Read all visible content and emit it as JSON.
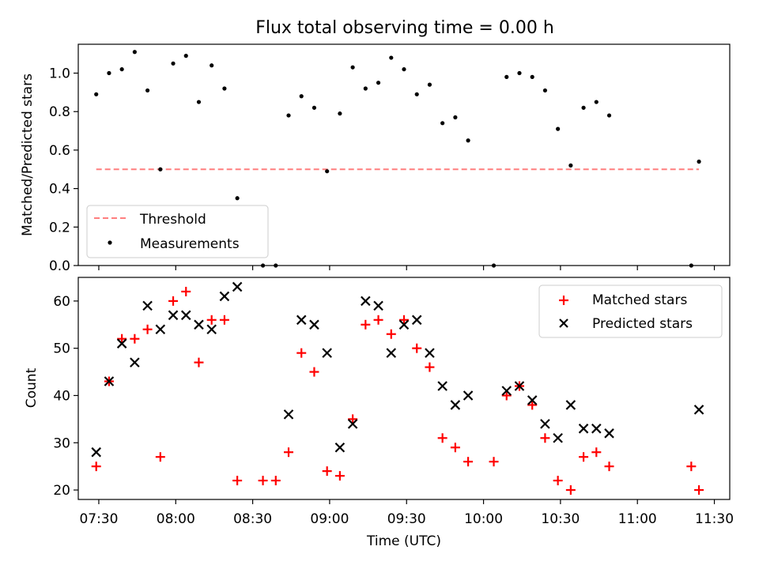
{
  "title": "Flux total observing time = 0.00 h",
  "xlabel": "Time (UTC)",
  "x_ticks": [
    "07:30",
    "08:00",
    "08:30",
    "09:00",
    "09:30",
    "10:00",
    "10:30",
    "11:00",
    "11:30"
  ],
  "x_tick_minutes": [
    450,
    480,
    510,
    540,
    570,
    600,
    630,
    660,
    690
  ],
  "chart_data": [
    {
      "type": "scatter",
      "ylabel": "Matched/Predicted stars",
      "xlim": [
        "07:22",
        "11:36"
      ],
      "ylim": [
        0,
        1.15
      ],
      "y_ticks": [
        "0.0",
        "0.2",
        "0.4",
        "0.6",
        "0.8",
        "1.0"
      ],
      "y_tick_values": [
        0,
        0.2,
        0.4,
        0.6,
        0.8,
        1.0
      ],
      "legend_position": "lower-left",
      "colors": {
        "threshold": "#ff7f7f",
        "measurements": "#000000"
      },
      "threshold": {
        "name": "Threshold",
        "value": 0.5,
        "x_range": [
          "07:29",
          "11:24"
        ]
      },
      "series": [
        {
          "name": "Measurements",
          "x": [
            "07:29",
            "07:34",
            "07:39",
            "07:44",
            "07:49",
            "07:54",
            "07:59",
            "08:04",
            "08:09",
            "08:14",
            "08:19",
            "08:24",
            "08:34",
            "08:39",
            "08:44",
            "08:49",
            "08:54",
            "08:59",
            "09:04",
            "09:09",
            "09:14",
            "09:19",
            "09:24",
            "09:29",
            "09:34",
            "09:39",
            "09:44",
            "09:49",
            "09:54",
            "10:04",
            "10:09",
            "10:14",
            "10:19",
            "10:24",
            "10:29",
            "10:34",
            "10:39",
            "10:44",
            "10:49",
            "11:21",
            "11:24"
          ],
          "y": [
            0.89,
            1.0,
            1.02,
            1.11,
            0.91,
            0.5,
            1.05,
            1.09,
            0.85,
            1.04,
            0.92,
            0.35,
            0.0,
            0.0,
            0.78,
            0.88,
            0.82,
            0.49,
            0.79,
            1.03,
            0.92,
            0.95,
            1.08,
            1.02,
            0.89,
            0.94,
            0.74,
            0.77,
            0.65,
            0.0,
            0.98,
            1.0,
            0.98,
            0.91,
            0.71,
            0.52,
            0.82,
            0.85,
            0.78,
            0.0,
            0.54
          ]
        }
      ]
    },
    {
      "type": "scatter",
      "ylabel": "Count",
      "xlim": [
        "07:22",
        "11:36"
      ],
      "ylim": [
        18,
        65
      ],
      "y_ticks": [
        "20",
        "30",
        "40",
        "50",
        "60"
      ],
      "y_tick_values": [
        20,
        30,
        40,
        50,
        60
      ],
      "legend_position": "upper-right",
      "colors": {
        "matched": "#ff0000",
        "predicted": "#000000"
      },
      "series": [
        {
          "name": "Matched stars",
          "x": [
            "07:29",
            "07:34",
            "07:39",
            "07:44",
            "07:49",
            "07:54",
            "07:59",
            "08:04",
            "08:09",
            "08:14",
            "08:19",
            "08:24",
            "08:34",
            "08:39",
            "08:44",
            "08:49",
            "08:54",
            "08:59",
            "09:04",
            "09:09",
            "09:14",
            "09:19",
            "09:24",
            "09:29",
            "09:34",
            "09:39",
            "09:44",
            "09:49",
            "09:54",
            "10:04",
            "10:09",
            "10:14",
            "10:19",
            "10:24",
            "10:29",
            "10:34",
            "10:39",
            "10:44",
            "10:49",
            "11:21",
            "11:24"
          ],
          "y": [
            25,
            43,
            52,
            52,
            54,
            27,
            60,
            62,
            47,
            56,
            56,
            22,
            22,
            22,
            28,
            49,
            45,
            24,
            23,
            35,
            55,
            56,
            53,
            56,
            50,
            46,
            31,
            29,
            26,
            26,
            40,
            42,
            38,
            31,
            22,
            20,
            27,
            28,
            25,
            25,
            20
          ]
        },
        {
          "name": "Predicted stars",
          "x": [
            "07:29",
            "07:34",
            "07:39",
            "07:44",
            "07:49",
            "07:54",
            "07:59",
            "08:04",
            "08:09",
            "08:14",
            "08:19",
            "08:24",
            "08:44",
            "08:49",
            "08:54",
            "08:59",
            "09:04",
            "09:09",
            "09:14",
            "09:19",
            "09:24",
            "09:29",
            "09:34",
            "09:39",
            "09:44",
            "09:49",
            "09:54",
            "10:09",
            "10:14",
            "10:19",
            "10:24",
            "10:29",
            "10:34",
            "10:39",
            "10:44",
            "10:49",
            "11:24"
          ],
          "y": [
            28,
            43,
            51,
            47,
            59,
            54,
            57,
            57,
            55,
            54,
            61,
            63,
            36,
            56,
            55,
            49,
            29,
            34,
            60,
            59,
            49,
            55,
            56,
            49,
            42,
            38,
            40,
            41,
            42,
            39,
            34,
            31,
            38,
            33,
            33,
            32,
            37
          ]
        }
      ]
    }
  ]
}
